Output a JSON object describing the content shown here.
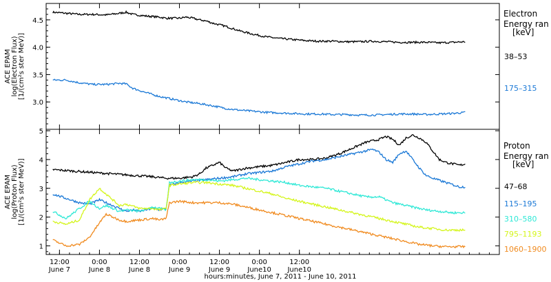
{
  "chart_data": [
    {
      "type": "line",
      "ylabel": [
        "ACE EPAM",
        "log(Electron Flux)",
        "[1/(cm²s ster MeV)]"
      ],
      "ylim": [
        2.5,
        4.8
      ],
      "yticks": [
        3.0,
        3.5,
        4.0,
        4.5
      ],
      "ytick_labels": [
        "3.0",
        "3.5",
        "4.0",
        "4.5"
      ],
      "legend": {
        "title": [
          "Electron",
          "Energy ran",
          "[keV]"
        ],
        "placement": "right"
      },
      "series": [
        {
          "name": "38–53",
          "color": "#000000",
          "points": [
            [
              -14,
              4.64
            ],
            [
              -10,
              4.62
            ],
            [
              -6,
              4.6
            ],
            [
              -2,
              4.6
            ],
            [
              2,
              4.59
            ],
            [
              6,
              4.62
            ],
            [
              8,
              4.64
            ],
            [
              10,
              4.6
            ],
            [
              14,
              4.57
            ],
            [
              18,
              4.55
            ],
            [
              20,
              4.53
            ],
            [
              24,
              4.53
            ],
            [
              26,
              4.55
            ],
            [
              28,
              4.53
            ],
            [
              30,
              4.5
            ],
            [
              32,
              4.48
            ],
            [
              34,
              4.44
            ],
            [
              38,
              4.38
            ],
            [
              42,
              4.3
            ],
            [
              46,
              4.24
            ],
            [
              50,
              4.19
            ],
            [
              54,
              4.16
            ],
            [
              58,
              4.14
            ],
            [
              62,
              4.12
            ],
            [
              66,
              4.11
            ],
            [
              70,
              4.11
            ],
            [
              74,
              4.1
            ],
            [
              78,
              4.1
            ],
            [
              82,
              4.11
            ],
            [
              86,
              4.1
            ],
            [
              90,
              4.09
            ],
            [
              94,
              4.09
            ],
            [
              98,
              4.09
            ],
            [
              102,
              4.08
            ],
            [
              106,
              4.09
            ],
            [
              110,
              4.1
            ]
          ]
        },
        {
          "name": "175–315",
          "color": "#1a78d6",
          "points": [
            [
              -14,
              3.4
            ],
            [
              -10,
              3.4
            ],
            [
              -6,
              3.35
            ],
            [
              -2,
              3.32
            ],
            [
              2,
              3.32
            ],
            [
              6,
              3.34
            ],
            [
              8,
              3.33
            ],
            [
              10,
              3.25
            ],
            [
              14,
              3.17
            ],
            [
              18,
              3.1
            ],
            [
              22,
              3.05
            ],
            [
              26,
              3.0
            ],
            [
              30,
              2.97
            ],
            [
              34,
              2.93
            ],
            [
              38,
              2.88
            ],
            [
              42,
              2.85
            ],
            [
              46,
              2.83
            ],
            [
              50,
              2.81
            ],
            [
              54,
              2.8
            ],
            [
              58,
              2.79
            ],
            [
              62,
              2.78
            ],
            [
              66,
              2.78
            ],
            [
              70,
              2.77
            ],
            [
              74,
              2.77
            ],
            [
              78,
              2.76
            ],
            [
              82,
              2.76
            ],
            [
              86,
              2.77
            ],
            [
              90,
              2.78
            ],
            [
              94,
              2.78
            ],
            [
              98,
              2.77
            ],
            [
              102,
              2.78
            ],
            [
              106,
              2.79
            ],
            [
              110,
              2.81
            ]
          ]
        }
      ]
    },
    {
      "type": "line",
      "ylabel": [
        "ACE EPAM",
        "log(Proton Flux)",
        "[1/(cm²s ster MeV)]"
      ],
      "ylim": [
        0.7,
        5.05
      ],
      "yticks": [
        1,
        2,
        3,
        4,
        5
      ],
      "ytick_labels": [
        "1",
        "2",
        "3",
        "4",
        "5"
      ],
      "legend": {
        "title": [
          "Proton",
          "Energy ran",
          "[keV]"
        ],
        "placement": "right"
      },
      "series": [
        {
          "name": "47–68",
          "color": "#000000",
          "points": [
            [
              -14,
              3.65
            ],
            [
              -8,
              3.6
            ],
            [
              -2,
              3.55
            ],
            [
              4,
              3.5
            ],
            [
              10,
              3.45
            ],
            [
              16,
              3.4
            ],
            [
              20,
              3.35
            ],
            [
              24,
              3.35
            ],
            [
              28,
              3.4
            ],
            [
              30,
              3.5
            ],
            [
              32,
              3.7
            ],
            [
              34,
              3.8
            ],
            [
              36,
              3.9
            ],
            [
              38,
              3.7
            ],
            [
              40,
              3.6
            ],
            [
              44,
              3.7
            ],
            [
              48,
              3.75
            ],
            [
              52,
              3.8
            ],
            [
              56,
              3.9
            ],
            [
              60,
              4.0
            ],
            [
              64,
              4.0
            ],
            [
              68,
              4.05
            ],
            [
              72,
              4.2
            ],
            [
              76,
              4.4
            ],
            [
              80,
              4.6
            ],
            [
              84,
              4.7
            ],
            [
              86,
              4.8
            ],
            [
              88,
              4.7
            ],
            [
              90,
              4.5
            ],
            [
              92,
              4.75
            ],
            [
              94,
              4.85
            ],
            [
              96,
              4.75
            ],
            [
              98,
              4.6
            ],
            [
              100,
              4.3
            ],
            [
              102,
              4.0
            ],
            [
              104,
              3.9
            ],
            [
              106,
              3.85
            ],
            [
              108,
              3.8
            ],
            [
              110,
              3.85
            ]
          ]
        },
        {
          "name": "115–195",
          "color": "#1a78d6",
          "points": [
            [
              -14,
              2.8
            ],
            [
              -10,
              2.65
            ],
            [
              -6,
              2.5
            ],
            [
              -3,
              2.45
            ],
            [
              0,
              2.6
            ],
            [
              2,
              2.5
            ],
            [
              4,
              2.4
            ],
            [
              6,
              2.3
            ],
            [
              8,
              2.2
            ],
            [
              10,
              2.25
            ],
            [
              12,
              2.2
            ],
            [
              16,
              2.3
            ],
            [
              18,
              2.25
            ],
            [
              20,
              2.3
            ],
            [
              21,
              3.1
            ],
            [
              24,
              3.2
            ],
            [
              28,
              3.25
            ],
            [
              32,
              3.3
            ],
            [
              36,
              3.35
            ],
            [
              40,
              3.4
            ],
            [
              44,
              3.5
            ],
            [
              48,
              3.55
            ],
            [
              52,
              3.6
            ],
            [
              56,
              3.75
            ],
            [
              60,
              3.85
            ],
            [
              64,
              3.95
            ],
            [
              68,
              4.0
            ],
            [
              72,
              4.1
            ],
            [
              76,
              4.2
            ],
            [
              80,
              4.3
            ],
            [
              82,
              4.35
            ],
            [
              84,
              4.25
            ],
            [
              86,
              4.0
            ],
            [
              88,
              3.9
            ],
            [
              90,
              4.2
            ],
            [
              92,
              4.3
            ],
            [
              94,
              4.0
            ],
            [
              96,
              3.7
            ],
            [
              98,
              3.45
            ],
            [
              100,
              3.35
            ],
            [
              104,
              3.2
            ],
            [
              108,
              3.05
            ],
            [
              110,
              3.05
            ]
          ]
        },
        {
          "name": "310–580",
          "color": "#2ee8d6",
          "points": [
            [
              -14,
              2.2
            ],
            [
              -10,
              1.95
            ],
            [
              -6,
              2.3
            ],
            [
              -3,
              2.55
            ],
            [
              0,
              2.3
            ],
            [
              2,
              2.4
            ],
            [
              4,
              2.3
            ],
            [
              6,
              2.2
            ],
            [
              8,
              2.25
            ],
            [
              12,
              2.2
            ],
            [
              16,
              2.35
            ],
            [
              18,
              2.3
            ],
            [
              20,
              2.25
            ],
            [
              21,
              3.2
            ],
            [
              24,
              3.25
            ],
            [
              28,
              3.3
            ],
            [
              32,
              3.3
            ],
            [
              36,
              3.25
            ],
            [
              40,
              3.3
            ],
            [
              44,
              3.35
            ],
            [
              48,
              3.3
            ],
            [
              52,
              3.25
            ],
            [
              56,
              3.2
            ],
            [
              60,
              3.1
            ],
            [
              64,
              3.05
            ],
            [
              68,
              3.0
            ],
            [
              72,
              2.9
            ],
            [
              76,
              2.8
            ],
            [
              80,
              2.7
            ],
            [
              84,
              2.7
            ],
            [
              86,
              2.6
            ],
            [
              88,
              2.5
            ],
            [
              90,
              2.45
            ],
            [
              94,
              2.35
            ],
            [
              98,
              2.25
            ],
            [
              102,
              2.2
            ],
            [
              106,
              2.15
            ],
            [
              110,
              2.15
            ]
          ]
        },
        {
          "name": "795–1193",
          "color": "#d4f51a",
          "points": [
            [
              -14,
              1.85
            ],
            [
              -10,
              1.75
            ],
            [
              -6,
              1.9
            ],
            [
              -3,
              2.6
            ],
            [
              0,
              3.0
            ],
            [
              2,
              2.8
            ],
            [
              4,
              2.6
            ],
            [
              6,
              2.4
            ],
            [
              8,
              2.45
            ],
            [
              12,
              2.3
            ],
            [
              16,
              2.3
            ],
            [
              18,
              2.25
            ],
            [
              20,
              2.3
            ],
            [
              21,
              3.1
            ],
            [
              24,
              3.15
            ],
            [
              28,
              3.2
            ],
            [
              32,
              3.2
            ],
            [
              36,
              3.15
            ],
            [
              40,
              3.1
            ],
            [
              44,
              3.0
            ],
            [
              48,
              2.9
            ],
            [
              52,
              2.8
            ],
            [
              56,
              2.65
            ],
            [
              60,
              2.55
            ],
            [
              64,
              2.45
            ],
            [
              68,
              2.35
            ],
            [
              72,
              2.25
            ],
            [
              76,
              2.15
            ],
            [
              80,
              2.05
            ],
            [
              84,
              1.95
            ],
            [
              88,
              1.85
            ],
            [
              92,
              1.75
            ],
            [
              96,
              1.65
            ],
            [
              100,
              1.6
            ],
            [
              104,
              1.55
            ],
            [
              108,
              1.55
            ],
            [
              110,
              1.55
            ]
          ]
        },
        {
          "name": "1060–1900",
          "color": "#f08a1e",
          "points": [
            [
              -14,
              1.2
            ],
            [
              -10,
              1.0
            ],
            [
              -6,
              1.05
            ],
            [
              -3,
              1.3
            ],
            [
              0,
              1.8
            ],
            [
              2,
              2.1
            ],
            [
              4,
              2.0
            ],
            [
              6,
              1.9
            ],
            [
              8,
              1.85
            ],
            [
              12,
              1.9
            ],
            [
              16,
              1.95
            ],
            [
              18,
              1.9
            ],
            [
              20,
              1.95
            ],
            [
              21,
              2.5
            ],
            [
              24,
              2.55
            ],
            [
              28,
              2.5
            ],
            [
              32,
              2.5
            ],
            [
              36,
              2.5
            ],
            [
              40,
              2.45
            ],
            [
              44,
              2.35
            ],
            [
              48,
              2.25
            ],
            [
              52,
              2.15
            ],
            [
              56,
              2.05
            ],
            [
              60,
              1.95
            ],
            [
              64,
              1.85
            ],
            [
              68,
              1.75
            ],
            [
              72,
              1.65
            ],
            [
              76,
              1.55
            ],
            [
              80,
              1.45
            ],
            [
              84,
              1.35
            ],
            [
              88,
              1.25
            ],
            [
              92,
              1.15
            ],
            [
              96,
              1.05
            ],
            [
              100,
              1.0
            ],
            [
              104,
              0.97
            ],
            [
              108,
              0.97
            ],
            [
              110,
              0.97
            ]
          ]
        }
      ]
    }
  ],
  "x_axis": {
    "xlim": [
      -16,
      120
    ],
    "xlabel": "hours:minutes, June  7, 2011 - June 10, 2011",
    "ticks": [
      {
        "x": -12,
        "time": "12:00",
        "date": "June 7"
      },
      {
        "x": 0,
        "time": "0:00",
        "date": "June 8"
      },
      {
        "x": 12,
        "time": "12:00",
        "date": "June 8"
      },
      {
        "x": 24,
        "time": "0:00",
        "date": "June 9"
      },
      {
        "x": 36,
        "time": "12:00",
        "date": "June 9"
      },
      {
        "x": 48,
        "time": "0:00",
        "date": "June10"
      },
      {
        "x": 60,
        "time": "12:00",
        "date": "June10"
      }
    ]
  }
}
